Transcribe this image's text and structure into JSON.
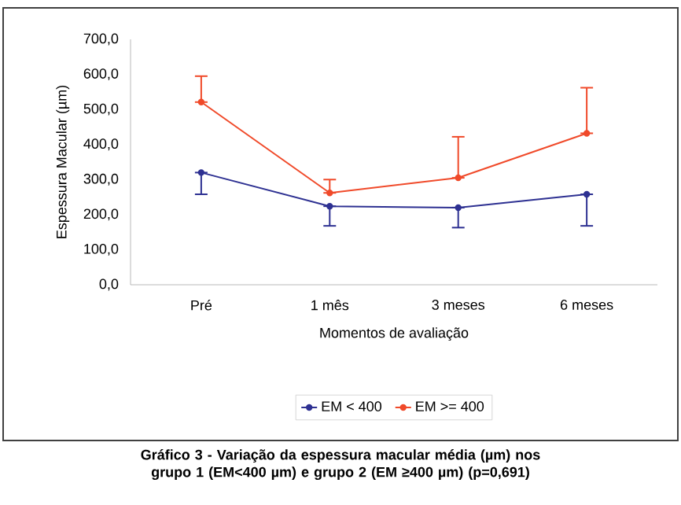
{
  "chart_data": {
    "type": "line",
    "xlabel": "Momentos de avaliação",
    "ylabel": "Espessura Macular (µm)",
    "categories": [
      "Pré",
      "1 mês",
      "3 meses",
      "6 meses"
    ],
    "series": [
      {
        "name": "EM < 400",
        "color": "#2e3192",
        "values": [
          320,
          224,
          220,
          258
        ],
        "errors": [
          [
            258,
            320
          ],
          [
            168,
            224
          ],
          [
            163,
            220
          ],
          [
            168,
            258
          ]
        ]
      },
      {
        "name": "EM >= 400",
        "color": "#f04a2a",
        "values": [
          521,
          262,
          305,
          432
        ],
        "errors": [
          [
            521,
            595
          ],
          [
            262,
            300
          ],
          [
            305,
            422
          ],
          [
            432,
            562
          ]
        ]
      }
    ],
    "ylim": [
      0,
      700
    ],
    "yticks": [
      {
        "value": 0,
        "label": "0,0"
      },
      {
        "value": 100,
        "label": "100,0"
      },
      {
        "value": 200,
        "label": "200,0"
      },
      {
        "value": 300,
        "label": "300,0"
      },
      {
        "value": 400,
        "label": "400,0"
      },
      {
        "value": 500,
        "label": "500,0"
      },
      {
        "value": 600,
        "label": "600,0"
      },
      {
        "value": 700,
        "label": "700,0"
      }
    ],
    "legend": "bottom",
    "marker": "circle",
    "grid": false,
    "annotations": [
      "Gráfico 3 - Variação da espessura macular média (µm) nos grupo 1 (EM<400 µm) e grupo 2 (EM ≥400 µm) (p=0,691)"
    ]
  }
}
